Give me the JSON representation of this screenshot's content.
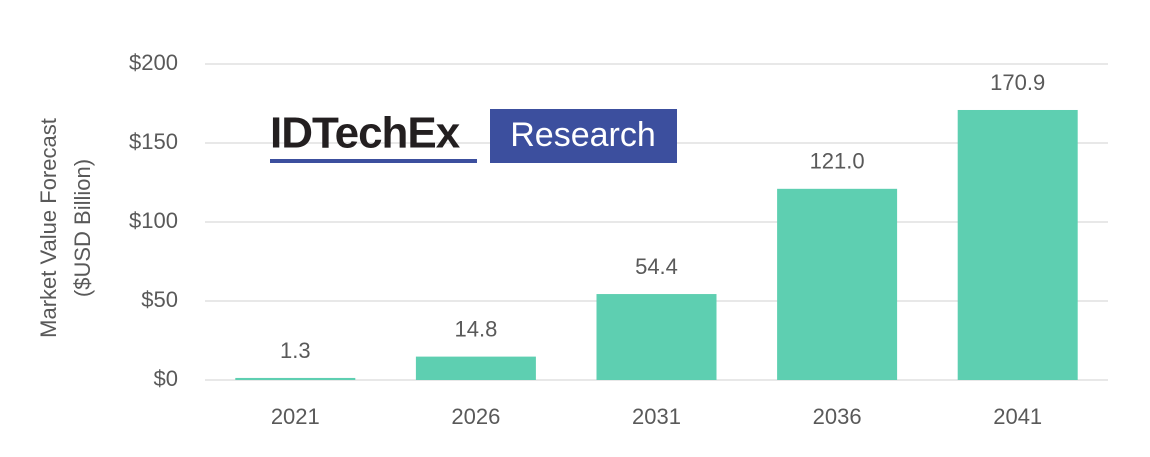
{
  "chart_data": {
    "type": "bar",
    "ylabel": [
      "Market Value Forecast",
      "($USD Billion)"
    ],
    "categories": [
      "2021",
      "2026",
      "2031",
      "2036",
      "2041"
    ],
    "values": [
      1.3,
      14.8,
      54.4,
      121.0,
      170.9
    ],
    "value_labels": [
      "1.3",
      "14.8",
      "54.4",
      "121.0",
      "170.9"
    ],
    "color": "#5ecfb1",
    "ylim": [
      0,
      200
    ],
    "yticks": [
      {
        "value": 0,
        "label": "$0"
      },
      {
        "value": 50,
        "label": "$50"
      },
      {
        "value": 100,
        "label": "$100"
      },
      {
        "value": 150,
        "label": "$150"
      },
      {
        "value": 200,
        "label": "$200"
      }
    ],
    "grid": true,
    "logo": {
      "left": "IDTechEx",
      "right": "Research"
    }
  }
}
